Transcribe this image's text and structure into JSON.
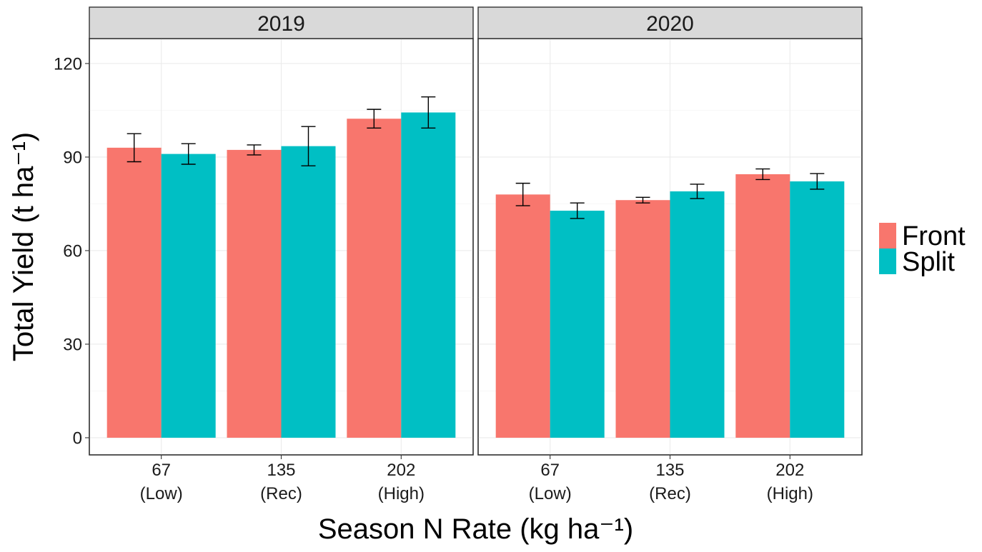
{
  "chart_data": {
    "type": "bar",
    "facets": [
      "2019",
      "2020"
    ],
    "categories": [
      {
        "value": "67",
        "label": "(Low)"
      },
      {
        "value": "135",
        "label": "(Rec)"
      },
      {
        "value": "202",
        "label": "(High)"
      }
    ],
    "series": [
      {
        "name": "Front",
        "color": "#F8766D",
        "values": {
          "2019": [
            93.0,
            92.3,
            102.3
          ],
          "2020": [
            78.0,
            76.2,
            84.5
          ]
        },
        "errors": {
          "2019": [
            4.5,
            1.6,
            3.0
          ],
          "2020": [
            3.6,
            0.9,
            1.7
          ]
        }
      },
      {
        "name": "Split",
        "color": "#00BFC4",
        "values": {
          "2019": [
            91.0,
            93.5,
            104.3
          ],
          "2020": [
            72.8,
            79.0,
            82.2
          ]
        },
        "errors": {
          "2019": [
            3.3,
            6.3,
            5.0
          ],
          "2020": [
            2.5,
            2.3,
            2.5
          ]
        }
      }
    ],
    "ylim": [
      -5.5,
      128
    ],
    "yticks": [
      0,
      30,
      60,
      90,
      120
    ],
    "ytick_labels": [
      "0",
      "30",
      "60",
      "90",
      "120"
    ],
    "xlabel": "Season N Rate (kg ha⁻¹)",
    "ylabel": "Total Yield (t ha⁻¹)",
    "legend": {
      "position": "right",
      "entries": [
        "Front",
        "Split"
      ]
    },
    "grid": true
  }
}
